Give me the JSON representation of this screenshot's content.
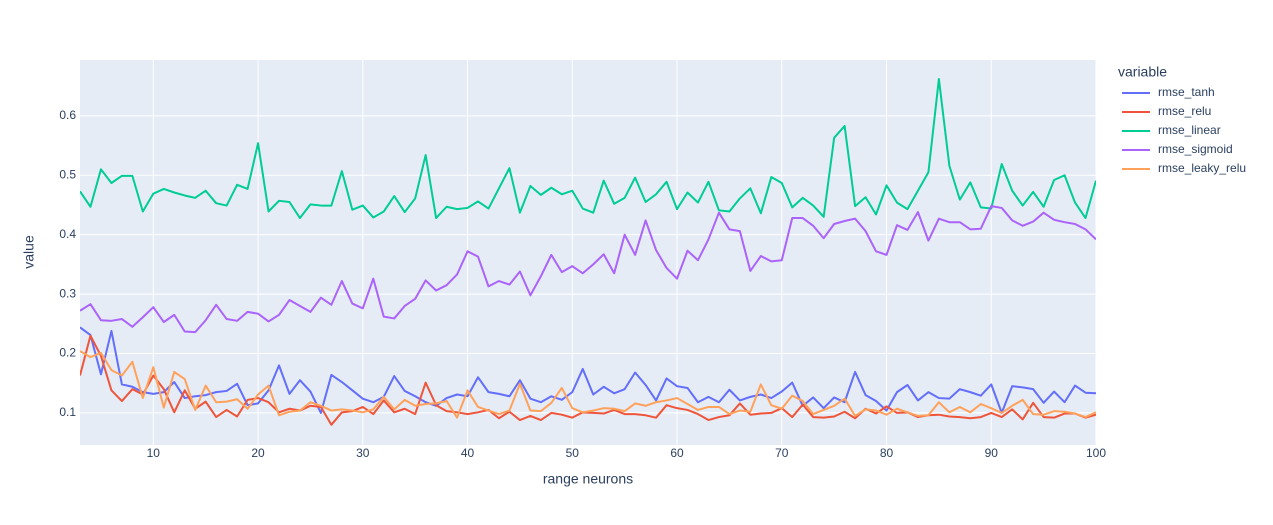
{
  "chart_data": {
    "type": "line",
    "x_label": "range neurons",
    "y_label": "value",
    "legend_title": "variable",
    "x": [
      3,
      4,
      5,
      6,
      7,
      8,
      9,
      10,
      11,
      12,
      13,
      14,
      15,
      16,
      17,
      18,
      19,
      20,
      21,
      22,
      23,
      24,
      25,
      26,
      27,
      28,
      29,
      30,
      31,
      32,
      33,
      34,
      35,
      36,
      37,
      38,
      39,
      40,
      41,
      42,
      43,
      44,
      45,
      46,
      47,
      48,
      49,
      50,
      51,
      52,
      53,
      54,
      55,
      56,
      57,
      58,
      59,
      60,
      61,
      62,
      63,
      64,
      65,
      66,
      67,
      68,
      69,
      70,
      71,
      72,
      73,
      74,
      75,
      76,
      77,
      78,
      79,
      80,
      81,
      82,
      83,
      84,
      85,
      86,
      87,
      88,
      89,
      90,
      91,
      92,
      93,
      94,
      95,
      96,
      97,
      98,
      99,
      100
    ],
    "xlim": [
      3,
      100
    ],
    "xticks": [
      10,
      20,
      30,
      40,
      50,
      60,
      70,
      80,
      90,
      100
    ],
    "ylim": [
      0.046,
      0.694
    ],
    "yticks": [
      0.1,
      0.2,
      0.3,
      0.4,
      0.5,
      0.6
    ],
    "grid": true,
    "series": [
      {
        "name": "rmse_tanh",
        "color": "#636efa",
        "values": [
          0.244,
          0.231,
          0.165,
          0.238,
          0.148,
          0.144,
          0.135,
          0.132,
          0.135,
          0.152,
          0.125,
          0.128,
          0.13,
          0.135,
          0.137,
          0.149,
          0.113,
          0.116,
          0.138,
          0.18,
          0.132,
          0.155,
          0.136,
          0.1,
          0.164,
          0.152,
          0.138,
          0.124,
          0.118,
          0.127,
          0.162,
          0.137,
          0.128,
          0.118,
          0.112,
          0.125,
          0.131,
          0.128,
          0.16,
          0.135,
          0.132,
          0.128,
          0.155,
          0.124,
          0.118,
          0.128,
          0.122,
          0.135,
          0.174,
          0.131,
          0.144,
          0.133,
          0.14,
          0.168,
          0.147,
          0.121,
          0.158,
          0.145,
          0.142,
          0.118,
          0.127,
          0.118,
          0.139,
          0.121,
          0.127,
          0.131,
          0.125,
          0.136,
          0.151,
          0.112,
          0.126,
          0.108,
          0.126,
          0.118,
          0.169,
          0.13,
          0.12,
          0.104,
          0.135,
          0.147,
          0.121,
          0.135,
          0.125,
          0.124,
          0.14,
          0.135,
          0.129,
          0.148,
          0.1,
          0.145,
          0.143,
          0.14,
          0.117,
          0.136,
          0.118,
          0.146,
          0.134,
          0.133
        ]
      },
      {
        "name": "rmse_relu",
        "color": "#EF553B",
        "values": [
          0.163,
          0.23,
          0.196,
          0.138,
          0.12,
          0.14,
          0.131,
          0.163,
          0.14,
          0.101,
          0.138,
          0.107,
          0.119,
          0.093,
          0.105,
          0.094,
          0.122,
          0.125,
          0.118,
          0.101,
          0.107,
          0.104,
          0.112,
          0.11,
          0.08,
          0.101,
          0.103,
          0.11,
          0.098,
          0.121,
          0.101,
          0.107,
          0.098,
          0.151,
          0.113,
          0.103,
          0.101,
          0.098,
          0.101,
          0.105,
          0.091,
          0.102,
          0.088,
          0.095,
          0.088,
          0.1,
          0.097,
          0.092,
          0.101,
          0.1,
          0.099,
          0.105,
          0.098,
          0.098,
          0.096,
          0.092,
          0.113,
          0.108,
          0.105,
          0.098,
          0.088,
          0.093,
          0.096,
          0.116,
          0.097,
          0.099,
          0.1,
          0.108,
          0.093,
          0.114,
          0.093,
          0.092,
          0.094,
          0.102,
          0.091,
          0.107,
          0.099,
          0.111,
          0.1,
          0.101,
          0.093,
          0.096,
          0.097,
          0.094,
          0.093,
          0.091,
          0.093,
          0.1,
          0.093,
          0.106,
          0.089,
          0.117,
          0.093,
          0.092,
          0.099,
          0.099,
          0.092,
          0.097
        ]
      },
      {
        "name": "rmse_linear",
        "color": "#00cc96",
        "values": [
          0.473,
          0.447,
          0.51,
          0.487,
          0.499,
          0.499,
          0.439,
          0.469,
          0.477,
          0.471,
          0.466,
          0.462,
          0.474,
          0.453,
          0.449,
          0.484,
          0.477,
          0.554,
          0.439,
          0.457,
          0.455,
          0.428,
          0.451,
          0.449,
          0.449,
          0.507,
          0.442,
          0.449,
          0.429,
          0.439,
          0.465,
          0.438,
          0.461,
          0.534,
          0.428,
          0.447,
          0.443,
          0.445,
          0.456,
          0.444,
          0.478,
          0.512,
          0.437,
          0.482,
          0.467,
          0.479,
          0.468,
          0.474,
          0.444,
          0.437,
          0.491,
          0.452,
          0.462,
          0.496,
          0.455,
          0.468,
          0.489,
          0.443,
          0.471,
          0.454,
          0.489,
          0.441,
          0.439,
          0.461,
          0.478,
          0.436,
          0.497,
          0.487,
          0.446,
          0.462,
          0.449,
          0.43,
          0.563,
          0.583,
          0.448,
          0.463,
          0.434,
          0.483,
          0.454,
          0.443,
          0.474,
          0.505,
          0.662,
          0.516,
          0.459,
          0.488,
          0.446,
          0.444,
          0.519,
          0.474,
          0.449,
          0.472,
          0.447,
          0.492,
          0.5,
          0.454,
          0.428,
          0.491
        ]
      },
      {
        "name": "rmse_sigmoid",
        "color": "#ab63fa",
        "values": [
          0.272,
          0.283,
          0.256,
          0.255,
          0.258,
          0.245,
          0.261,
          0.278,
          0.253,
          0.265,
          0.237,
          0.236,
          0.256,
          0.282,
          0.258,
          0.255,
          0.27,
          0.267,
          0.254,
          0.265,
          0.29,
          0.28,
          0.27,
          0.294,
          0.282,
          0.322,
          0.284,
          0.276,
          0.326,
          0.262,
          0.259,
          0.28,
          0.292,
          0.323,
          0.306,
          0.315,
          0.333,
          0.372,
          0.363,
          0.313,
          0.322,
          0.316,
          0.338,
          0.298,
          0.33,
          0.366,
          0.337,
          0.347,
          0.335,
          0.35,
          0.367,
          0.335,
          0.4,
          0.366,
          0.424,
          0.374,
          0.344,
          0.326,
          0.373,
          0.357,
          0.392,
          0.437,
          0.409,
          0.406,
          0.339,
          0.364,
          0.355,
          0.357,
          0.428,
          0.428,
          0.415,
          0.394,
          0.418,
          0.423,
          0.427,
          0.406,
          0.372,
          0.366,
          0.416,
          0.408,
          0.438,
          0.39,
          0.427,
          0.421,
          0.421,
          0.409,
          0.41,
          0.448,
          0.445,
          0.424,
          0.415,
          0.422,
          0.437,
          0.425,
          0.421,
          0.418,
          0.409,
          0.392
        ]
      },
      {
        "name": "rmse_leaky_relu",
        "color": "#FFA15A",
        "values": [
          0.204,
          0.194,
          0.201,
          0.172,
          0.163,
          0.186,
          0.125,
          0.177,
          0.109,
          0.169,
          0.157,
          0.105,
          0.146,
          0.118,
          0.119,
          0.123,
          0.107,
          0.131,
          0.146,
          0.096,
          0.102,
          0.104,
          0.118,
          0.112,
          0.104,
          0.106,
          0.104,
          0.101,
          0.106,
          0.127,
          0.106,
          0.122,
          0.112,
          0.115,
          0.116,
          0.12,
          0.092,
          0.138,
          0.11,
          0.104,
          0.098,
          0.104,
          0.149,
          0.104,
          0.103,
          0.117,
          0.142,
          0.108,
          0.101,
          0.104,
          0.108,
          0.107,
          0.103,
          0.116,
          0.112,
          0.118,
          0.121,
          0.125,
          0.115,
          0.105,
          0.11,
          0.11,
          0.098,
          0.104,
          0.102,
          0.148,
          0.113,
          0.107,
          0.129,
          0.12,
          0.098,
          0.105,
          0.112,
          0.124,
          0.095,
          0.106,
          0.104,
          0.097,
          0.107,
          0.101,
          0.095,
          0.096,
          0.118,
          0.101,
          0.11,
          0.101,
          0.115,
          0.108,
          0.1,
          0.112,
          0.122,
          0.098,
          0.097,
          0.103,
          0.102,
          0.099,
          0.093,
          0.101
        ]
      }
    ]
  }
}
